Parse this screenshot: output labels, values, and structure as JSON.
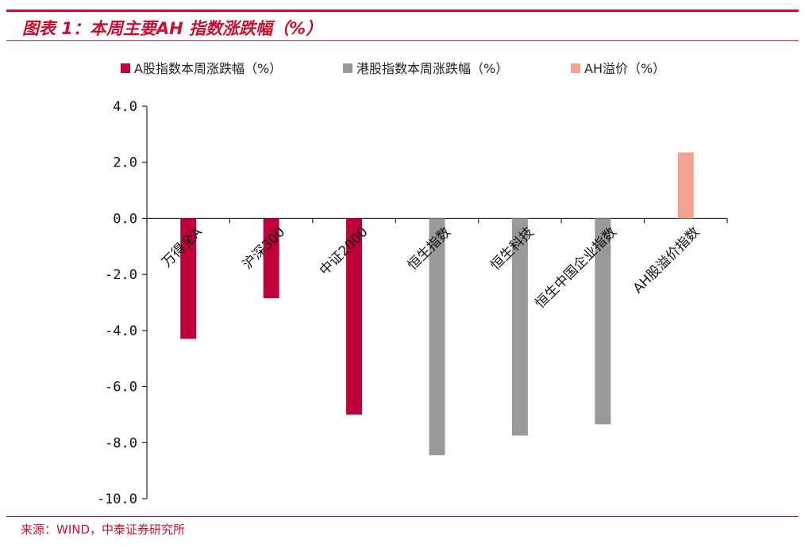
{
  "figure": {
    "title": "图表 1：本周主要AH 指数涨跌幅（%）",
    "source": "来源：WIND，中泰证券研究所"
  },
  "colors": {
    "brand_red": "#c8102e",
    "a_share": "#c0003a",
    "hk_share": "#999999",
    "premium": "#f4a093"
  },
  "chart_data": {
    "type": "bar",
    "categories": [
      "万得全A",
      "沪深300",
      "中证2000",
      "恒生指数",
      "恒生科技",
      "恒生中国企业指数",
      "AH股溢价指数"
    ],
    "series": [
      {
        "name": "A股指数本周涨跌幅（%）",
        "color": "#c0003a",
        "values": [
          -4.3,
          -2.85,
          -7.0,
          null,
          null,
          null,
          null
        ]
      },
      {
        "name": "港股指数本周涨跌幅（%）",
        "color": "#999999",
        "values": [
          null,
          null,
          null,
          -8.45,
          -7.75,
          -7.35,
          null
        ]
      },
      {
        "name": "AH溢价（%）",
        "color": "#f4a093",
        "values": [
          null,
          null,
          null,
          null,
          null,
          null,
          2.35
        ]
      }
    ],
    "ylim": [
      -10.0,
      4.0
    ],
    "yticks": [
      4.0,
      2.0,
      0.0,
      -2.0,
      -4.0,
      -6.0,
      -8.0,
      -10.0
    ],
    "ytick_labels": [
      "4.0",
      "2.0",
      "0.0",
      "-2.0",
      "-4.0",
      "-6.0",
      "-8.0",
      "-10.0"
    ],
    "legend_position": "top",
    "grid": false,
    "xlabel": "",
    "ylabel": ""
  }
}
